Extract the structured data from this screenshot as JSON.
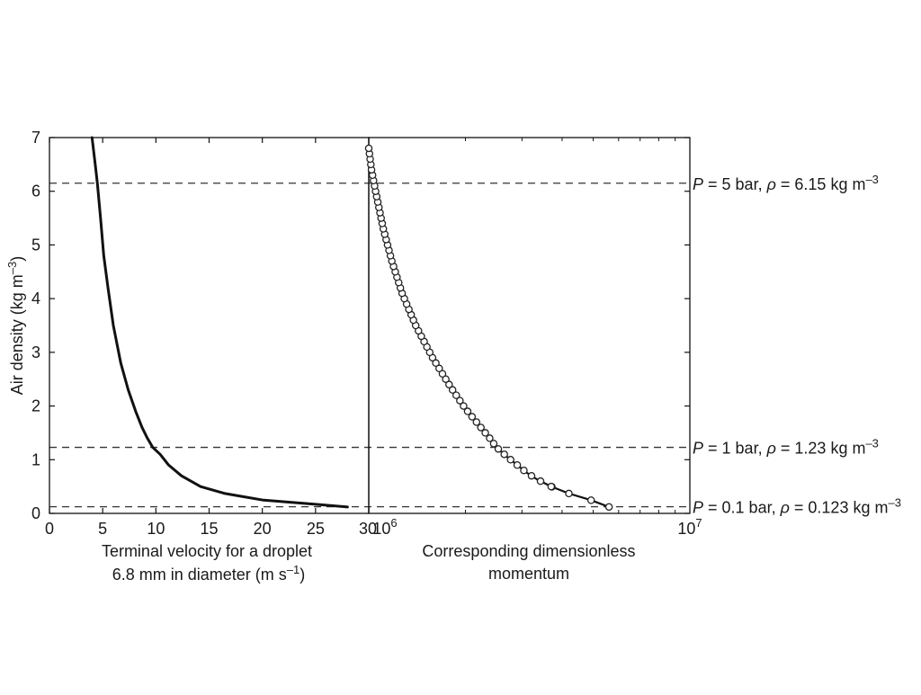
{
  "chart_data": [
    {
      "type": "line",
      "xlabel": [
        "Terminal velocity for a droplet",
        "6.8 mm in diameter (m s",
        "–1",
        ")"
      ],
      "ylabel": [
        "Air density (kg m",
        "–3",
        ")"
      ],
      "xlim": [
        0,
        30
      ],
      "ylim": [
        0,
        7
      ],
      "xticks": [
        "0",
        "5",
        "10",
        "15",
        "20",
        "25",
        "30"
      ],
      "yticks": [
        "0",
        "1",
        "2",
        "3",
        "4",
        "5",
        "6",
        "7"
      ],
      "series": [
        {
          "x": [
            28.0,
            25.0,
            20.0,
            16.5,
            14.2,
            12.4,
            11.2,
            10.4,
            9.7,
            9.2,
            8.7,
            8.1,
            7.4,
            6.7,
            6.0,
            5.5,
            5.1,
            4.8,
            4.5,
            4.3,
            4.0
          ],
          "y": [
            0.12,
            0.17,
            0.25,
            0.37,
            0.5,
            0.7,
            0.9,
            1.1,
            1.23,
            1.4,
            1.6,
            1.9,
            2.3,
            2.8,
            3.5,
            4.2,
            4.8,
            5.5,
            6.15,
            6.5,
            7.0
          ]
        }
      ],
      "reference_lines_y": [
        0.123,
        1.23,
        6.15
      ],
      "grid": false,
      "line_color": "#111111"
    },
    {
      "type": "line",
      "xlabel": [
        "Corresponding dimensionless",
        "momentum"
      ],
      "xscale": "log",
      "xlim": [
        1000000,
        10000000
      ],
      "ylim": [
        0,
        7
      ],
      "xticks": [
        {
          "base": "10",
          "exp": "6"
        },
        {
          "base": "10",
          "exp": "7"
        }
      ],
      "series": [
        {
          "markers": "open-circle",
          "x": [
            5600000,
            4900000,
            4200000,
            3700000,
            3350000,
            3100000,
            2900000,
            2700000,
            2500000,
            2380000,
            2200000,
            2000000,
            1800000,
            1580000,
            1400000,
            1270000,
            1180000,
            1110000,
            1050000,
            1020000,
            1000000
          ],
          "y": [
            0.12,
            0.25,
            0.37,
            0.5,
            0.63,
            0.76,
            0.9,
            1.05,
            1.23,
            1.4,
            1.65,
            1.95,
            2.35,
            2.9,
            3.5,
            4.1,
            4.7,
            5.3,
            6.0,
            6.4,
            6.8
          ]
        }
      ],
      "reference_lines_y": [
        0.123,
        1.23,
        6.15
      ],
      "grid": false,
      "line_color": "#111111"
    }
  ],
  "annotations": [
    {
      "y": 6.15,
      "p": "P",
      "p_val": " = 5 bar, ",
      "rho": "ρ",
      "rho_val": " = 6.15 kg m",
      "unit_exp": "–3"
    },
    {
      "y": 1.23,
      "p": "P",
      "p_val": " = 1 bar, ",
      "rho": "ρ",
      "rho_val": " = 1.23 kg m",
      "unit_exp": "–3"
    },
    {
      "y": 0.123,
      "p": "P",
      "p_val": " = 0.1 bar, ",
      "rho": "ρ",
      "rho_val": " = 0.123 kg m",
      "unit_exp": "–3"
    }
  ]
}
